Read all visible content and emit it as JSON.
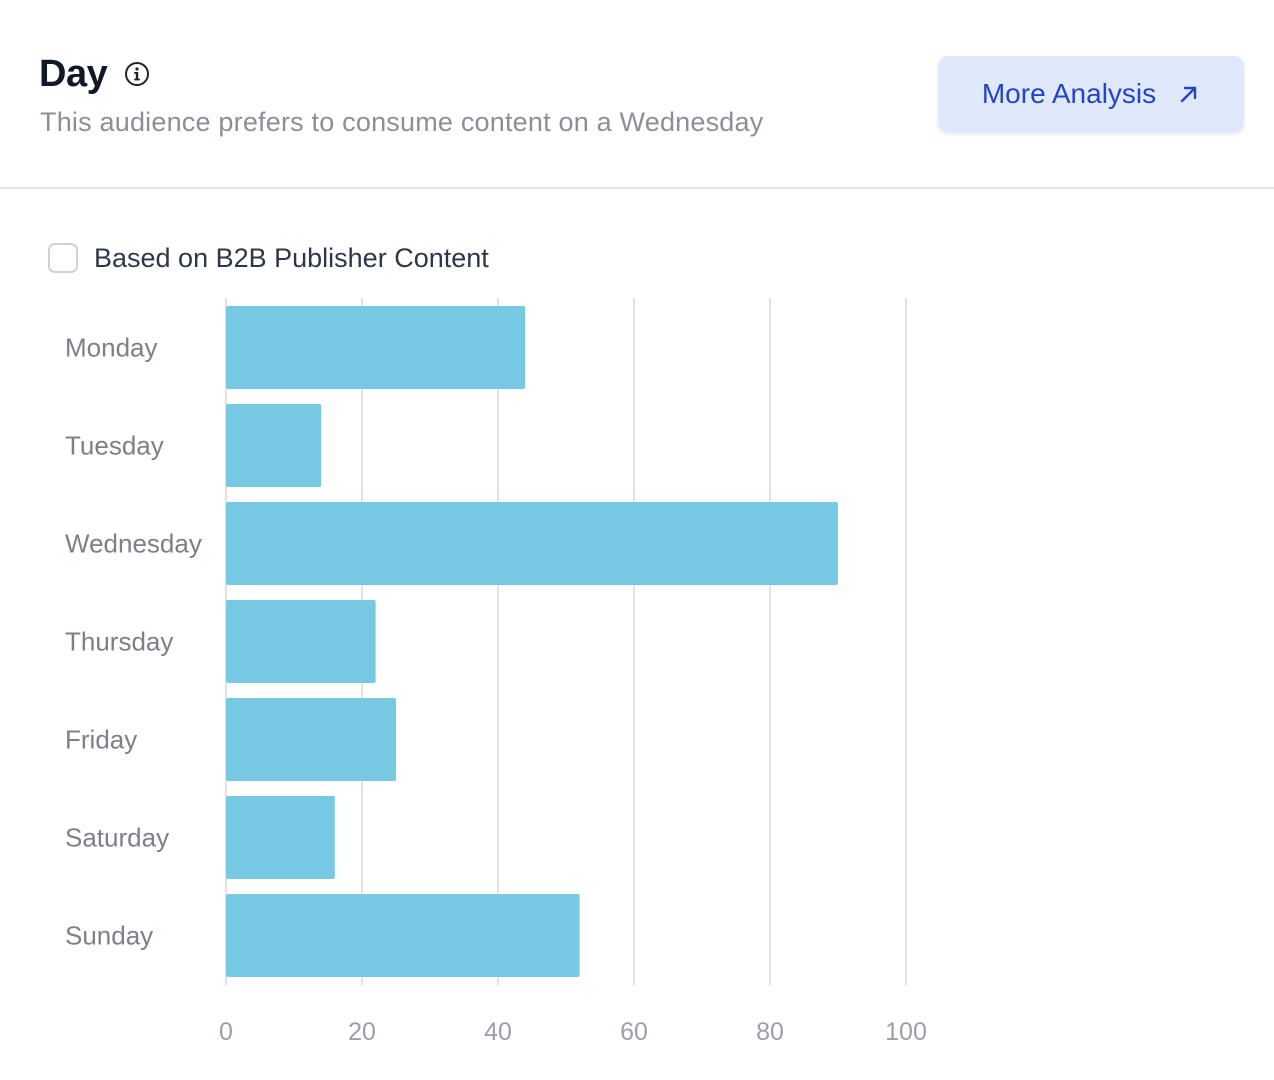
{
  "header": {
    "title": "Day",
    "info_icon": "info-circle-icon",
    "subtitle": "This audience prefers to consume content on a Wednesday",
    "more_button": {
      "label": "More Analysis",
      "icon": "arrow-up-right-icon"
    }
  },
  "filter": {
    "label": "Based on B2B Publisher Content",
    "checked": false
  },
  "colors": {
    "bar": "#77c9e3",
    "gridline": "#e3e3e3",
    "button_bg": "#dfe9fb",
    "button_text": "#2344c8"
  },
  "chart_data": {
    "type": "bar",
    "orientation": "horizontal",
    "categories": [
      "Monday",
      "Tuesday",
      "Wednesday",
      "Thursday",
      "Friday",
      "Saturday",
      "Sunday"
    ],
    "values": [
      44,
      14,
      90,
      22,
      25,
      16,
      52
    ],
    "xlim": [
      0,
      100
    ],
    "xticks": [
      "0",
      "20",
      "40",
      "60",
      "80",
      "100"
    ],
    "grid": true
  }
}
